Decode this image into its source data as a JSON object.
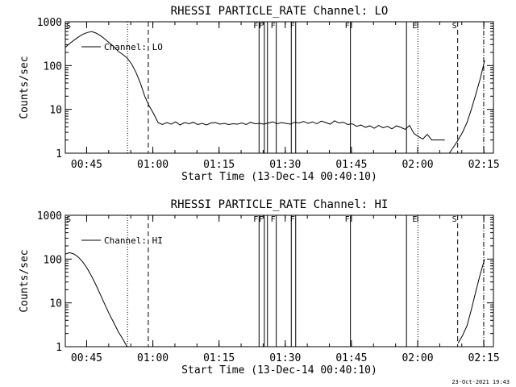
{
  "footer": {
    "timestamp": "23-Oct-2021 19:43"
  },
  "chart_data": [
    {
      "type": "line",
      "title": "RHESSI PARTICLE_RATE Channel: LO",
      "xlabel": "Start Time (13-Dec-14 00:40:10)",
      "ylabel": "Counts/sec",
      "x_unit": "minutes after 00:40:10",
      "xlim": [
        0,
        97
      ],
      "ylim": [
        1,
        1000
      ],
      "yscale": "log",
      "xticks": [
        "00:45",
        "01:00",
        "01:15",
        "01:30",
        "01:45",
        "02:00",
        "02:15"
      ],
      "yticks": [
        "1",
        "10",
        "100",
        "1000"
      ],
      "legend": {
        "label": "Channel: LO",
        "position": "top-left"
      },
      "series": [
        {
          "name": "Channel: LO",
          "segments": [
            {
              "x": [
                0,
                1,
                2,
                3,
                4,
                5,
                6,
                7,
                8,
                9,
                10,
                11,
                12,
                13,
                14,
                15,
                16,
                17,
                18,
                19,
                20,
                21,
                22,
                23,
                24,
                25,
                26,
                27,
                28,
                29,
                30,
                31,
                32,
                33,
                34,
                35,
                36,
                37,
                38,
                39,
                40,
                41,
                42,
                43,
                44,
                45,
                46,
                47,
                48,
                49,
                50,
                51,
                52,
                53,
                54,
                55,
                56,
                57,
                58,
                59,
                60,
                61,
                62,
                63,
                64,
                65,
                66,
                67,
                68,
                69,
                70,
                71,
                72,
                73,
                74,
                75,
                76,
                77,
                78,
                79,
                80,
                81,
                82,
                83,
                84,
                85,
                86
              ],
              "y": [
                260,
                320,
                380,
                450,
                520,
                570,
                600,
                550,
                480,
                400,
                330,
                270,
                210,
                180,
                150,
                110,
                70,
                40,
                20,
                12,
                8,
                5,
                4.5,
                5,
                4.6,
                5.2,
                4.4,
                5,
                4.7,
                5.1,
                4.5,
                4.8,
                4.4,
                4.9,
                5,
                4.6,
                4.8,
                4.5,
                4.7,
                4.6,
                4.9,
                4.5,
                5.1,
                4.7,
                4.8,
                4.6,
                4.9,
                5.2,
                4.7,
                5,
                4.8,
                4.6,
                5.1,
                4.9,
                5.3,
                4.8,
                5.2,
                4.7,
                5.4,
                5,
                4.6,
                5.5,
                4.9,
                5.1,
                4.5,
                4.7,
                4.1,
                4.4,
                3.9,
                4.2,
                3.7,
                4.3,
                3.8,
                4.1,
                3.6,
                4.2,
                3.9,
                3.5,
                4.3,
                2.8,
                2.4,
                2.1,
                2.7,
                2,
                2,
                2,
                2
              ]
            },
            {
              "x": [
                87,
                88,
                89,
                90,
                91,
                92,
                93,
                94,
                95
              ],
              "y": [
                1,
                1.4,
                2,
                3,
                5,
                10,
                22,
                50,
                130
              ]
            }
          ]
        }
      ],
      "annotations": {
        "solid_lines": [
          {
            "x": 43.9,
            "label": "F"
          },
          {
            "x": 45.1,
            "label": "F"
          },
          {
            "x": 45.8,
            "label": ""
          },
          {
            "x": 47.8,
            "label": "F"
          },
          {
            "x": 51.2,
            "label": ""
          },
          {
            "x": 52.2,
            "label": "F"
          },
          {
            "x": 64.6,
            "label": "F"
          },
          {
            "x": 77.3,
            "label": ""
          }
        ],
        "dotted_lines": [
          {
            "x": 14.1,
            "label": ""
          },
          {
            "x": 79.9,
            "label": "E"
          }
        ],
        "dashed_lines": [
          {
            "x": 18.8,
            "label": ""
          },
          {
            "x": 88.9,
            "label": "S"
          }
        ],
        "dashdot_lines": [
          {
            "x": 94.8,
            "label": ""
          }
        ],
        "corner_label": "S"
      }
    },
    {
      "type": "line",
      "title": "RHESSI PARTICLE_RATE Channel: HI",
      "xlabel": "Start Time (13-Dec-14 00:40:10)",
      "ylabel": "Counts/sec",
      "x_unit": "minutes after 00:40:10",
      "xlim": [
        0,
        97
      ],
      "ylim": [
        1,
        1000
      ],
      "yscale": "log",
      "xticks": [
        "00:45",
        "01:00",
        "01:15",
        "01:30",
        "01:45",
        "02:00",
        "02:15"
      ],
      "yticks": [
        "1",
        "10",
        "100",
        "1000"
      ],
      "legend": {
        "label": "Channel: HI",
        "position": "top-left"
      },
      "series": [
        {
          "name": "Channel: HI",
          "segments": [
            {
              "x": [
                0,
                1,
                2,
                3,
                4,
                5,
                6,
                7,
                8,
                9,
                10,
                11,
                12,
                13,
                14
              ],
              "y": [
                130,
                140,
                130,
                110,
                85,
                60,
                40,
                25,
                15,
                9,
                5.5,
                3.5,
                2.2,
                1.5,
                1
              ]
            },
            {
              "x": [
                89,
                90,
                91,
                92,
                93,
                94,
                95
              ],
              "y": [
                1.2,
                1.8,
                3,
                7,
                18,
                45,
                100
              ]
            }
          ]
        }
      ],
      "annotations": {
        "solid_lines": [
          {
            "x": 43.9,
            "label": "F"
          },
          {
            "x": 45.1,
            "label": "F"
          },
          {
            "x": 45.8,
            "label": ""
          },
          {
            "x": 47.8,
            "label": "F"
          },
          {
            "x": 51.2,
            "label": ""
          },
          {
            "x": 52.2,
            "label": "F"
          },
          {
            "x": 64.6,
            "label": "F"
          },
          {
            "x": 77.3,
            "label": ""
          }
        ],
        "dotted_lines": [
          {
            "x": 14.1,
            "label": ""
          },
          {
            "x": 79.9,
            "label": "E"
          }
        ],
        "dashed_lines": [
          {
            "x": 18.8,
            "label": ""
          },
          {
            "x": 88.9,
            "label": "S"
          }
        ],
        "dashdot_lines": [
          {
            "x": 94.8,
            "label": ""
          }
        ],
        "corner_label": "S"
      }
    }
  ]
}
